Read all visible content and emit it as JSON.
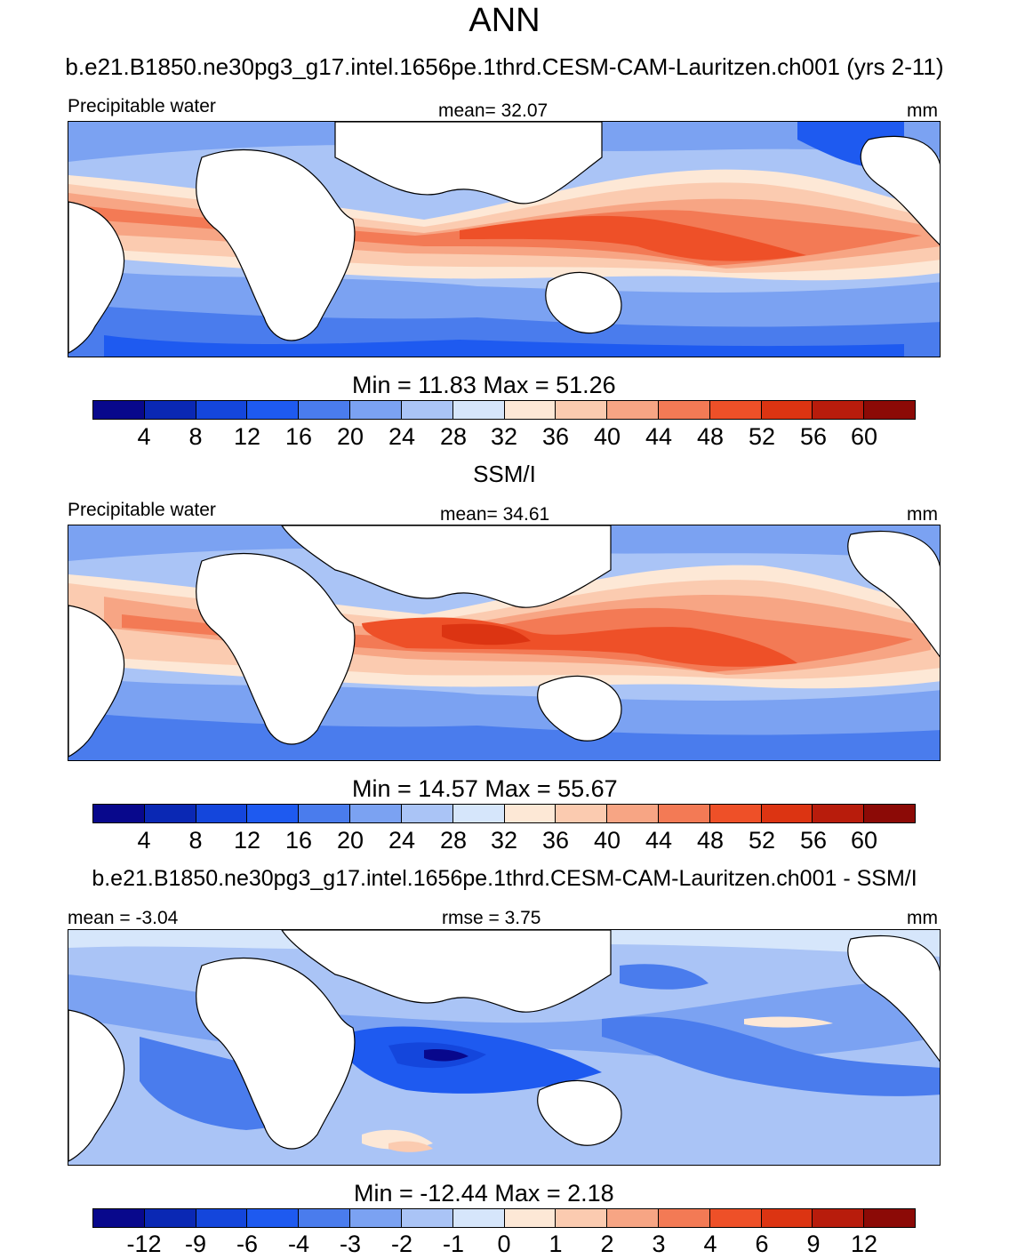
{
  "title": "ANN",
  "panels": [
    {
      "heading": "b.e21.B1850.ne30pg3_g17.intel.1656pe.1thrd.CESM-CAM-Lauritzen.ch001 (yrs 2-11)",
      "left_label": "Precipitable water",
      "center_label": "mean=  32.07",
      "units": "mm",
      "minmax": "Min =  11.83 Max =  51.26",
      "ticks": [
        "4",
        "8",
        "12",
        "16",
        "20",
        "24",
        "28",
        "32",
        "36",
        "40",
        "44",
        "48",
        "52",
        "56",
        "60"
      ]
    },
    {
      "heading": "SSM/I",
      "left_label": "Precipitable water",
      "center_label": "mean=  34.61",
      "units": "mm",
      "minmax": "Min =  14.57 Max =  55.67",
      "ticks": [
        "4",
        "8",
        "12",
        "16",
        "20",
        "24",
        "28",
        "32",
        "36",
        "40",
        "44",
        "48",
        "52",
        "56",
        "60"
      ]
    },
    {
      "heading": "b.e21.B1850.ne30pg3_g17.intel.1656pe.1thrd.CESM-CAM-Lauritzen.ch001 - SSM/I",
      "left_label": "mean =   -3.04",
      "center_label": "rmse =    3.75",
      "units": "mm",
      "minmax": "Min = -12.44 Max =    2.18",
      "ticks": [
        "-12",
        "-9",
        "-6",
        "-4",
        "-3",
        "-2",
        "-1",
        "0",
        "1",
        "2",
        "3",
        "4",
        "6",
        "9",
        "12"
      ]
    }
  ],
  "colors": {
    "palette": [
      "#08088c",
      "#0a28b4",
      "#1446dc",
      "#1e5af0",
      "#4a7ced",
      "#7ba2f2",
      "#aac4f6",
      "#d6e6fb",
      "#fde8d6",
      "#fbcbb0",
      "#f7a584",
      "#f37a55",
      "#ee5028",
      "#dc3412",
      "#b81c0c",
      "#8c0a06"
    ],
    "land": "#ffffff",
    "coast": "#000000"
  }
}
